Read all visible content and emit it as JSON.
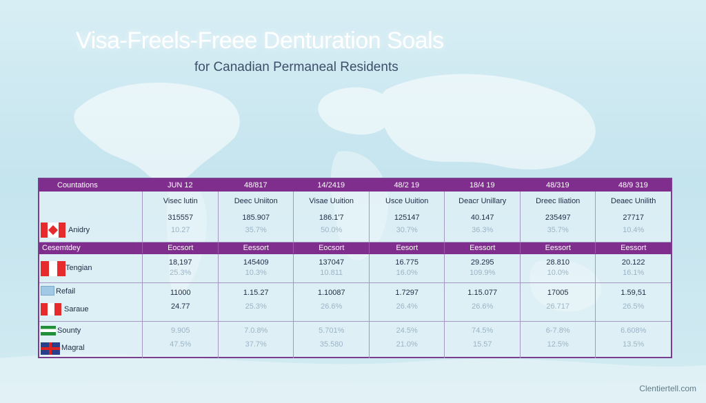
{
  "title": "Visa-Freels-Freee Denturation Soals",
  "subtitle": "for Canadian Permaneal Residents",
  "watermark": "Clentiertell.com",
  "table": {
    "header": [
      "Countations",
      "JUN 12",
      "48/817",
      "14/2419",
      "48/2 19",
      "18/4 19",
      "48/319",
      "48/9 319"
    ],
    "row1": {
      "country": "Anidry",
      "labels": [
        "Visec lutin",
        "Deec Uniiton",
        "Visae Uuition",
        "Usce Uuition",
        "Deacr Unillary",
        "Dreec Iliation",
        "Deaec Unilith"
      ],
      "values": [
        "315557",
        "185.907",
        "186.1'7",
        "125147",
        "40.147",
        "235497",
        "27717"
      ],
      "faded": [
        "10.27",
        "35.7%",
        "50.0%",
        "30.7%",
        "36.3%",
        "35.7%",
        "10.4%"
      ]
    },
    "row2": {
      "country": "Cesemtdey",
      "labels": [
        "Eocsort",
        "Eessort",
        "Eocsort",
        "Eesort",
        "Eessort",
        "Eessort",
        "Eessort"
      ]
    },
    "row3": {
      "country": "Tengian",
      "values": [
        "18,197",
        "145409",
        "137047",
        "16.775",
        "29.295",
        "28.810",
        "20.122"
      ],
      "faded": [
        "25.3%",
        "10.3%",
        "10.811",
        "16.0%",
        "109.9%",
        "10.0%",
        "16.1%"
      ]
    },
    "row4": {
      "country_a": "Refail",
      "country_b": "Saraue",
      "values": [
        "11000",
        "1.15.27",
        "1.10087",
        "1.7297",
        "1.15.077",
        "17005",
        "1.59,51"
      ],
      "values2": [
        "24.77",
        "25.3%",
        "26.6%",
        "26.4%",
        "26.6%",
        "26.717",
        "26.5%"
      ]
    },
    "row5": {
      "country_a": "Sounty",
      "country_b": "Magral",
      "values": [
        "9.905",
        "7.0.8%",
        "5.701%",
        "24.5%",
        "74.5%",
        "6-7.8%",
        "6.608%"
      ],
      "values2": [
        "47.5%",
        "37.7%",
        "35.580",
        "21.0%",
        "15.57",
        "12.5%",
        "13.5%"
      ]
    }
  }
}
